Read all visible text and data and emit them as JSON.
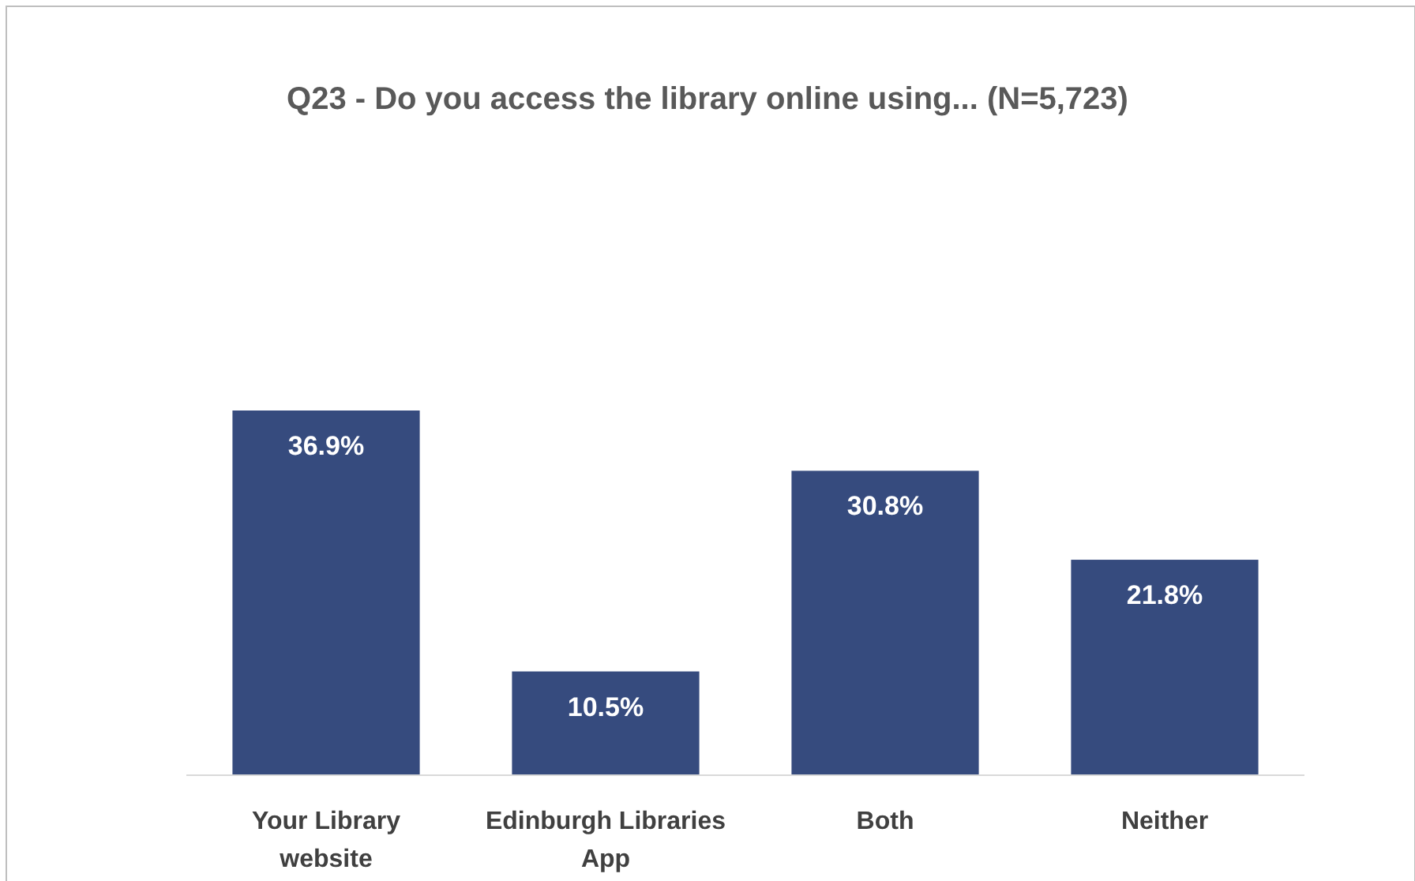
{
  "chart_data": {
    "type": "bar",
    "title": "Q23 - Do you access the library online using... (N=5,723)",
    "categories": [
      "Your Library website",
      "Edinburgh Libraries App",
      "Both",
      "Neither"
    ],
    "values": [
      36.9,
      10.5,
      30.8,
      21.8
    ],
    "value_labels": [
      "36.9%",
      "10.5%",
      "30.8%",
      "21.8%"
    ],
    "color": "#364b7e"
  }
}
